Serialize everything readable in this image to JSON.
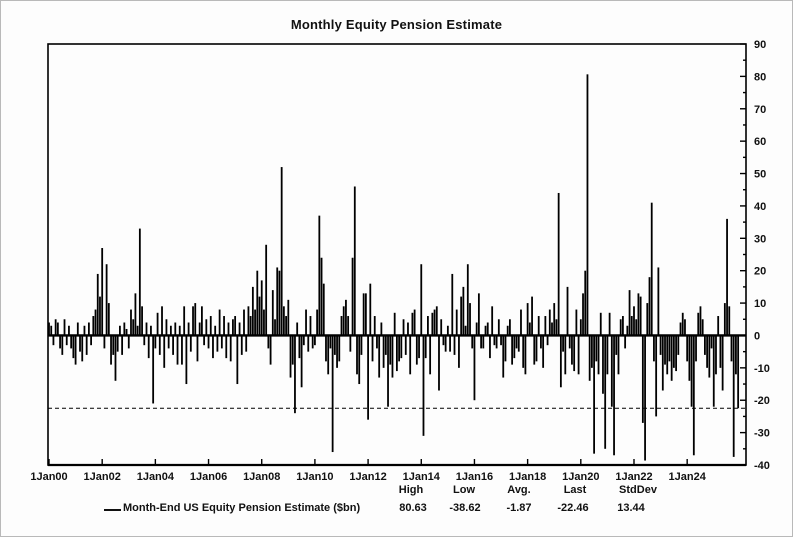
{
  "title": "Monthly Equity Pension Estimate",
  "legend": {
    "series_label": "Month-End US Equity Pension Estimate ($bn)",
    "stats": [
      {
        "label": "High",
        "value": "80.63"
      },
      {
        "label": "Low",
        "value": "-38.62"
      },
      {
        "label": "Avg.",
        "value": "-1.87"
      },
      {
        "label": "Last",
        "value": "-22.46"
      },
      {
        "label": "StdDev",
        "value": "13.44"
      }
    ]
  },
  "colors": {
    "bar": "#000000",
    "axis": "#000000",
    "text": "#111111",
    "background": "#fdfdfd"
  },
  "chart_data": {
    "type": "bar",
    "title": "Monthly Equity Pension Estimate",
    "frequency": "monthly",
    "x_start": "Jan 2000",
    "x_end": "Dec 2025",
    "x_tick_labels": [
      "1Jan00",
      "1Jan02",
      "1Jan04",
      "1Jan06",
      "1Jan08",
      "1Jan10",
      "1Jan12",
      "1Jan14",
      "1Jan16",
      "1Jan18",
      "1Jan20",
      "1Jan22",
      "1Jan24"
    ],
    "x_tick_interval_months": 24,
    "ylim": [
      -40,
      90
    ],
    "y_tick_step": 10,
    "y_minor_tick_step": 5,
    "y_axis_side": "right",
    "grid": false,
    "reference_line": {
      "style": "dashed",
      "value": -22.46,
      "meaning": "last value"
    },
    "stats": {
      "high": 80.63,
      "low": -38.62,
      "avg": -1.87,
      "last": -22.46,
      "stddev": 13.44
    },
    "series": [
      {
        "name": "Month-End US Equity Pension Estimate ($bn)",
        "values": [
          4,
          3,
          -3,
          5,
          4,
          -4,
          -6,
          5,
          -3,
          3,
          -4,
          -7,
          -9,
          4,
          -5,
          -8,
          3,
          -6,
          4,
          -3,
          6,
          8,
          19,
          12,
          27,
          -4,
          22,
          10,
          -9,
          -6,
          -14,
          -5,
          3,
          -6,
          4,
          2,
          -4,
          8,
          5,
          13,
          3,
          33,
          9,
          -3,
          4,
          -7,
          3,
          -21,
          -4,
          7,
          -6,
          9,
          -10,
          5,
          -4,
          3,
          -6,
          4,
          -9,
          3,
          -9,
          9,
          -15,
          4,
          -5,
          9,
          10,
          -8,
          4,
          9,
          -3,
          5,
          -4,
          6,
          -7,
          3,
          -5,
          8,
          -4,
          6,
          -7,
          4,
          -8,
          5,
          6,
          -15,
          4,
          -6,
          8,
          -5,
          9,
          6,
          15,
          8,
          20,
          12,
          17,
          8,
          28,
          -4,
          -9,
          14,
          5,
          21,
          20,
          52,
          9,
          6,
          11,
          -13,
          -9,
          -24,
          4,
          -7,
          -16,
          -3,
          8,
          -5,
          6,
          -4,
          -3,
          8,
          37,
          24,
          16,
          -8,
          -12,
          -4,
          -36,
          -6,
          -10,
          -8,
          6,
          9,
          11,
          6,
          -5,
          24,
          46,
          -12,
          -15,
          -6,
          13,
          13,
          -26,
          16,
          -8,
          6,
          -4,
          -13,
          4,
          -10,
          -6,
          -22,
          -9,
          -13,
          7,
          -11,
          -8,
          -7,
          5,
          -6,
          4,
          -12,
          7,
          8,
          -9,
          -7,
          22,
          -31,
          -7,
          6,
          -12,
          7,
          8,
          9,
          -17,
          5,
          -3,
          -5,
          3,
          -5,
          19,
          -6,
          8,
          -10,
          12,
          15,
          3,
          22,
          10,
          -4,
          -20,
          4,
          13,
          -4,
          -4,
          3,
          4,
          -7,
          9,
          -3,
          -4,
          5,
          -3,
          -13,
          -8,
          3,
          5,
          -9,
          -7,
          -4,
          -5,
          8,
          -10,
          -12,
          10,
          4,
          12,
          -9,
          -8,
          6,
          -4,
          -10,
          6,
          -3,
          8,
          4,
          10,
          5,
          44,
          -16,
          -5,
          -12,
          15,
          -4,
          -9,
          -11,
          8,
          -12,
          5,
          13,
          20,
          80.63,
          -14,
          -10,
          -36.5,
          -8,
          -12,
          7,
          -18,
          -35,
          -12,
          7,
          -22,
          -37,
          -6,
          -12,
          5,
          6,
          -4,
          3,
          14,
          6,
          9,
          5,
          13,
          12,
          -27,
          -38.62,
          10,
          18,
          41,
          -8,
          -25,
          21,
          -6,
          -17,
          -9,
          -12,
          -8,
          -14,
          -10,
          -11,
          -6,
          4,
          7,
          5,
          -8,
          -14,
          -22,
          -37,
          -8,
          7,
          9,
          5,
          -6,
          -10,
          -13,
          -4,
          -22,
          -12,
          6,
          -10,
          -17,
          10,
          36,
          9,
          -8,
          -37.5,
          -12,
          -22.46
        ]
      }
    ]
  }
}
